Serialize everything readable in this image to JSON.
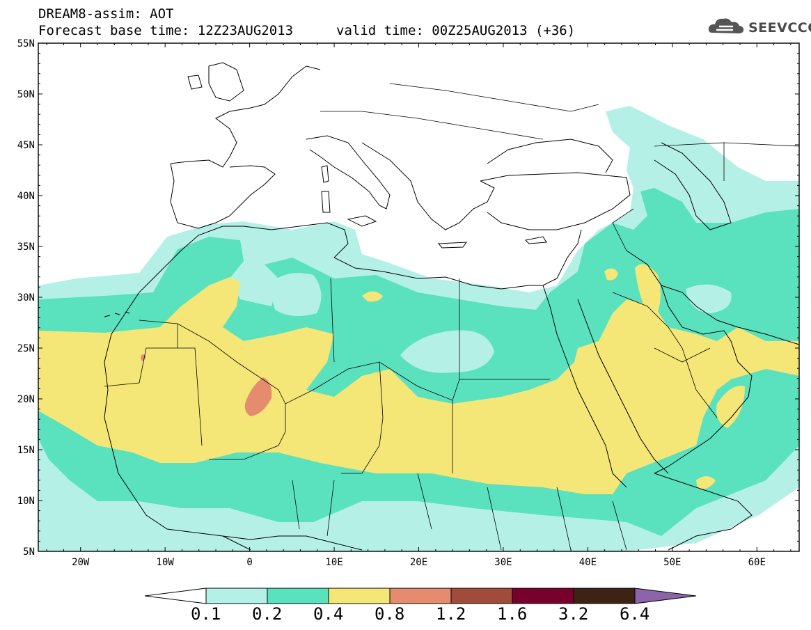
{
  "title": {
    "line1": "DREAM8-assim: AOT",
    "line2": "Forecast base time: 12Z23AUG2013",
    "line3": "valid time: 00Z25AUG2013 (+36)"
  },
  "logo_text": "SEEVCCC",
  "axes": {
    "lat_labels": [
      "55N",
      "50N",
      "45N",
      "40N",
      "35N",
      "30N",
      "25N",
      "20N",
      "15N",
      "10N",
      "5N"
    ],
    "lon_labels": [
      "20W",
      "10W",
      "0",
      "10E",
      "20E",
      "30E",
      "40E",
      "50E",
      "60E"
    ]
  },
  "colorbar": {
    "labels": [
      "0.1",
      "0.2",
      "0.4",
      "0.8",
      "1.2",
      "1.6",
      "3.2",
      "6.4"
    ],
    "colors": [
      "#ffffff",
      "#b4f0e6",
      "#5ae1be",
      "#f5e678",
      "#e68c6e",
      "#a04b3c",
      "#78002d",
      "#3c2314",
      "#8c64aa"
    ]
  },
  "colors": {
    "c01": "#b4f0e6",
    "c02": "#5ae1be",
    "c04": "#f5e678",
    "c08": "#e68c6e"
  }
}
